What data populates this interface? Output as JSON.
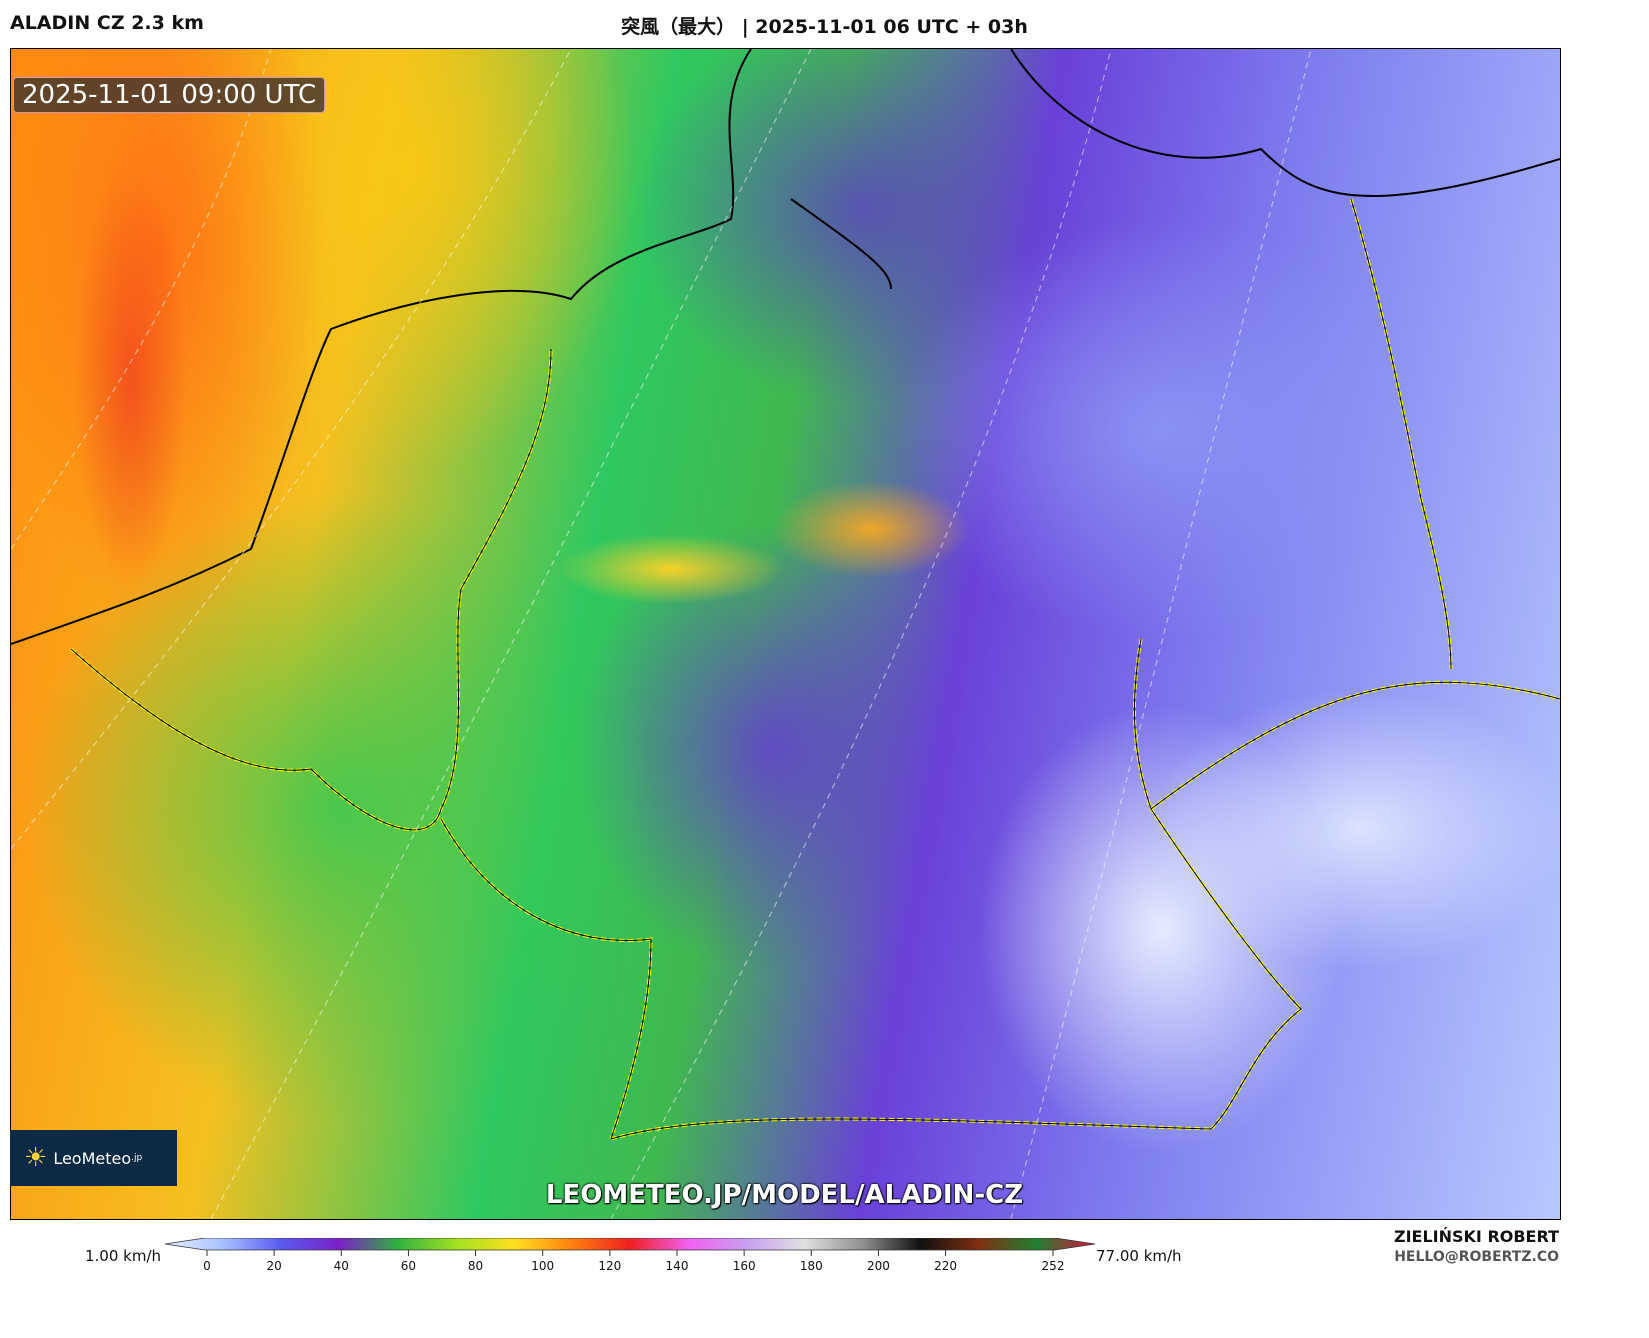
{
  "header": {
    "model": "ALADIN CZ 2.3 km",
    "title": "突風（最大） | 2025-11-01 06 UTC + 03h"
  },
  "map": {
    "valid_time": "2025-11-01 09:00 UTC",
    "watermark": "LEOMETEO.JP/MODEL/ALADIN-CZ",
    "logo": {
      "text": "LeoMeteo",
      "suffix": ".jp",
      "icon": "sun-icon"
    }
  },
  "colorbar": {
    "min_label": "1.00 km/h",
    "max_label": "77.00 km/h",
    "ticks": [
      "0",
      "20",
      "40",
      "60",
      "80",
      "100",
      "120",
      "140",
      "160",
      "180",
      "200",
      "220",
      "252"
    ],
    "tick_values": [
      0,
      20,
      40,
      60,
      80,
      100,
      120,
      140,
      160,
      180,
      200,
      220,
      252
    ],
    "colors": [
      "#e8f0ff",
      "#a8c0ff",
      "#5a5af0",
      "#7a20c8",
      "#30b040",
      "#a0e020",
      "#ffe020",
      "#ff8010",
      "#f02020",
      "#f060f0",
      "#c8a0f0",
      "#e0e0e0",
      "#909090",
      "#101010",
      "#803010",
      "#208030",
      "#e01040"
    ]
  },
  "footer": {
    "author": "ZIELIŃSKI ROBERT",
    "email": "HELLO@ROBERTZ.CO"
  }
}
